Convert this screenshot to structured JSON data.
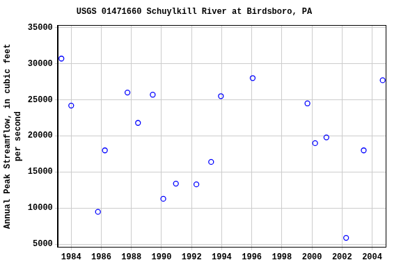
{
  "chart_data": {
    "type": "scatter",
    "title": "USGS 01471660 Schuylkill River at Birdsboro, PA",
    "y_label": [
      "Annual Peak Streamflow, in cubic feet",
      "per second"
    ],
    "x": [
      1983.35,
      1984.0,
      1985.78,
      1986.24,
      1987.74,
      1988.44,
      1989.42,
      1990.12,
      1990.96,
      1992.32,
      1993.3,
      1993.95,
      1996.06,
      1999.7,
      2000.21,
      2000.96,
      2002.27,
      2003.44,
      2004.7
    ],
    "values": [
      30700,
      24200,
      9500,
      18000,
      26000,
      21800,
      25700,
      11300,
      13400,
      13300,
      16400,
      25500,
      28000,
      24500,
      19000,
      19800,
      5900,
      18000,
      27700
    ],
    "color": "#0000ff",
    "marker": "circle",
    "xlim": [
      1983.1,
      2004.9
    ],
    "xticks": [
      1984,
      1986,
      1988,
      1990,
      1992,
      1994,
      1996,
      1998,
      2000,
      2002,
      2004
    ],
    "ylim": [
      4600,
      35300
    ],
    "yticks": [
      5000,
      10000,
      15000,
      20000,
      25000,
      30000,
      35000
    ],
    "grid": true
  }
}
